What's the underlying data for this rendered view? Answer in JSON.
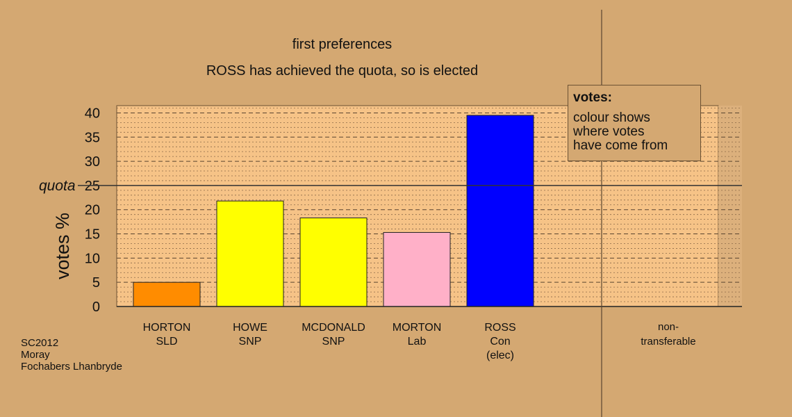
{
  "chart_data": {
    "type": "bar",
    "title": "first preferences",
    "subtitle": "ROSS has achieved the quota, so is elected",
    "ylabel": "votes %",
    "ylim": [
      0,
      41.5
    ],
    "yticks": [
      "0",
      "5",
      "10",
      "15",
      "20",
      "25",
      "30",
      "35",
      "40"
    ],
    "quota": {
      "label": "quota",
      "value": 25
    },
    "grid": true,
    "categories": [
      {
        "name": "HORTON",
        "party": "SLD",
        "note": "",
        "value": 5,
        "color": "#ff8c00"
      },
      {
        "name": "HOWE",
        "party": "SNP",
        "note": "",
        "value": 21.8,
        "color": "#ffff00"
      },
      {
        "name": "MCDONALD",
        "party": "SNP",
        "note": "",
        "value": 18.3,
        "color": "#ffff00"
      },
      {
        "name": "MORTON",
        "party": "Lab",
        "note": "",
        "value": 15.3,
        "color": "#ffb0c8"
      },
      {
        "name": "ROSS",
        "party": "Con",
        "note": "(elec)",
        "value": 39.5,
        "color": "#0000ff"
      }
    ],
    "non_transferable": {
      "label_line1": "non-",
      "label_line2": "transferable",
      "value": 0
    }
  },
  "legend": {
    "heading": "votes:",
    "lines": [
      "colour shows",
      "where votes",
      "have come from"
    ]
  },
  "footer": {
    "line1": "SC2012",
    "line2": "Moray",
    "line3": "Fochabers Lhanbryde"
  },
  "colors": {
    "background": "#d4a872",
    "plot_area": "#f6c387",
    "non_transferable_area": "#dcb07c"
  }
}
